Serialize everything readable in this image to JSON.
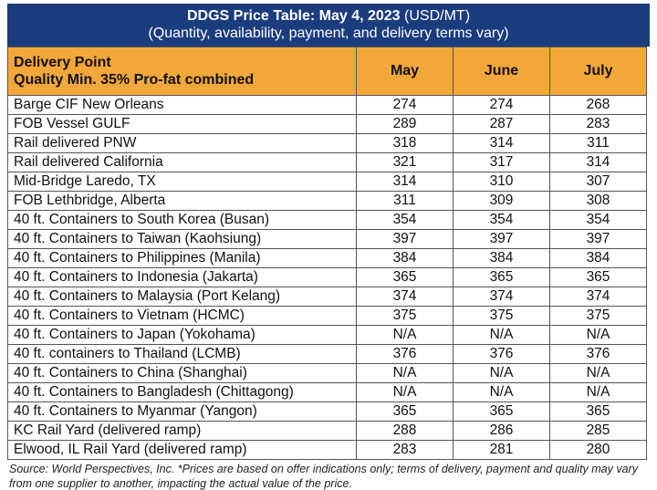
{
  "title": {
    "bold": "DDGS Price Table: May 4, 2023",
    "unit": "(USD/MT)",
    "subtitle": "(Quantity, availability, payment, and delivery terms vary)"
  },
  "header": {
    "delivery_point_line1": "Delivery Point",
    "delivery_point_line2": "Quality Min. 35% Pro-fat combined",
    "months": [
      "May",
      "June",
      "July"
    ]
  },
  "rows": [
    {
      "point": "Barge CIF New Orleans",
      "may": "274",
      "june": "274",
      "july": "268"
    },
    {
      "point": "FOB Vessel GULF",
      "may": "289",
      "june": "287",
      "july": "283"
    },
    {
      "point": "Rail delivered PNW",
      "may": "318",
      "june": "314",
      "july": "311"
    },
    {
      "point": "Rail delivered California",
      "may": "321",
      "june": "317",
      "july": "314"
    },
    {
      "point": "Mid-Bridge Laredo, TX",
      "may": "314",
      "june": "310",
      "july": "307"
    },
    {
      "point": "FOB Lethbridge, Alberta",
      "may": "311",
      "june": "309",
      "july": "308"
    },
    {
      "point": "40 ft. Containers to South Korea (Busan)",
      "may": "354",
      "june": "354",
      "july": "354"
    },
    {
      "point": "40 ft. Containers to Taiwan (Kaohsiung)",
      "may": "397",
      "june": "397",
      "july": "397"
    },
    {
      "point": "40 ft. Containers to Philippines (Manila)",
      "may": "384",
      "june": "384",
      "july": "384"
    },
    {
      "point": "40 ft. Containers to Indonesia (Jakarta)",
      "may": "365",
      "june": "365",
      "july": "365"
    },
    {
      "point": "40 ft. Containers to Malaysia (Port Kelang)",
      "may": "374",
      "june": "374",
      "july": "374"
    },
    {
      "point": "40 ft. Containers to Vietnam (HCMC)",
      "may": "375",
      "june": "375",
      "july": "375"
    },
    {
      "point": "40 ft. Containers to Japan (Yokohama)",
      "may": "N/A",
      "june": "N/A",
      "july": "N/A"
    },
    {
      "point": "40 ft. containers to Thailand (LCMB)",
      "may": "376",
      "june": "376",
      "july": "376"
    },
    {
      "point": "40 ft. Containers to China (Shanghai)",
      "may": "N/A",
      "june": "N/A",
      "july": "N/A"
    },
    {
      "point": "40 ft. Containers to Bangladesh (Chittagong)",
      "may": "N/A",
      "june": "N/A",
      "july": "N/A"
    },
    {
      "point": "40 ft. Containers to Myanmar (Yangon)",
      "may": "365",
      "june": "365",
      "july": "365"
    },
    {
      "point": "KC Rail Yard (delivered ramp)",
      "may": "288",
      "june": "286",
      "july": "285"
    },
    {
      "point": "Elwood, IL Rail Yard (delivered ramp)",
      "may": "283",
      "june": "281",
      "july": "280"
    }
  ],
  "footnote": {
    "source": "Source: World Perspectives, Inc.",
    "note": " *Prices are based on offer indications only; terms of delivery, payment and quality may vary from one supplier to another, impacting the actual value of the price."
  },
  "colors": {
    "title_bg": "#1b3c7d",
    "header_bg": "#f2a73b"
  }
}
